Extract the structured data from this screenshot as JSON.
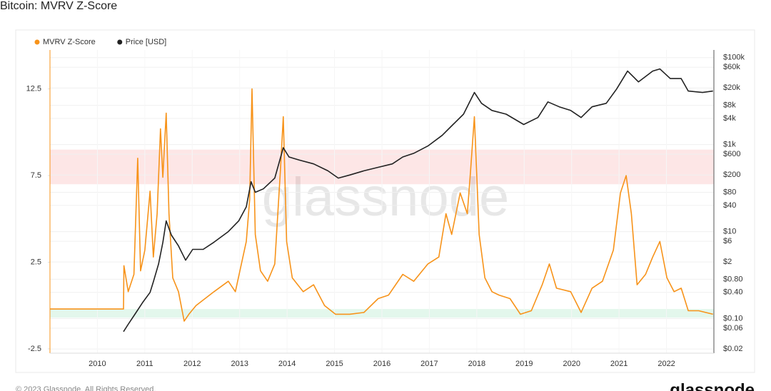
{
  "chart_data": {
    "type": "line",
    "title": "Bitcoin: MVRV Z-Score",
    "watermark": "glassnode",
    "copyright": "© 2023 Glassnode. All Rights Reserved.",
    "logo": "glassnode",
    "xlim": [
      2009,
      2023
    ],
    "xticks": [
      2010,
      2011,
      2012,
      2013,
      2014,
      2015,
      2016,
      2017,
      2018,
      2019,
      2020,
      2021,
      2022
    ],
    "ylim": [
      -2.75,
      14.75
    ],
    "yticks": [
      -2.5,
      2.5,
      7.5,
      12.5
    ],
    "y2lim": [
      0.016,
      150000
    ],
    "y2log": true,
    "y2ticks": [
      {
        "value": 100000,
        "label": "$100k"
      },
      {
        "value": 60000,
        "label": "$60k"
      },
      {
        "value": 20000,
        "label": "$20k"
      },
      {
        "value": 8000,
        "label": "$8k"
      },
      {
        "value": 4000,
        "label": "$4k"
      },
      {
        "value": 1000,
        "label": "$1k"
      },
      {
        "value": 600,
        "label": "$600"
      },
      {
        "value": 200,
        "label": "$200"
      },
      {
        "value": 80,
        "label": "$80"
      },
      {
        "value": 40,
        "label": "$40"
      },
      {
        "value": 10,
        "label": "$10"
      },
      {
        "value": 6,
        "label": "$6"
      },
      {
        "value": 2,
        "label": "$2"
      },
      {
        "value": 0.8,
        "label": "$0.80"
      },
      {
        "value": 0.4,
        "label": "$0.40"
      },
      {
        "value": 0.1,
        "label": "$0.10"
      },
      {
        "value": 0.06,
        "label": "$0.06"
      },
      {
        "value": 0.02,
        "label": "$0.02"
      }
    ],
    "grid": true,
    "legend": "top-left",
    "bands": [
      {
        "range": [
          7,
          9
        ],
        "color": "rgba(240,60,60,0.13)"
      },
      {
        "range": [
          -0.7,
          -0.2
        ],
        "color": "rgba(40,190,110,0.13)"
      }
    ],
    "series": [
      {
        "name": "MVRV Z-Score",
        "color": "#f7931a",
        "x": [
          2009,
          2010.55,
          2010.56,
          2010.65,
          2010.77,
          2010.85,
          2010.91,
          2011.0,
          2011.11,
          2011.18,
          2011.26,
          2011.33,
          2011.38,
          2011.45,
          2011.51,
          2011.59,
          2011.71,
          2011.83,
          2011.93,
          2012.08,
          2012.46,
          2012.76,
          2012.91,
          2013.14,
          2013.21,
          2013.26,
          2013.33,
          2013.44,
          2013.59,
          2013.74,
          2013.86,
          2013.92,
          2013.99,
          2014.11,
          2014.34,
          2014.56,
          2014.79,
          2015.02,
          2015.32,
          2015.62,
          2015.92,
          2016.14,
          2016.44,
          2016.67,
          2016.97,
          2017.2,
          2017.35,
          2017.47,
          2017.65,
          2017.8,
          2017.87,
          2017.95,
          2018.05,
          2018.17,
          2018.32,
          2018.47,
          2018.7,
          2018.92,
          2019.15,
          2019.38,
          2019.53,
          2019.68,
          2019.98,
          2020.2,
          2020.43,
          2020.65,
          2020.88,
          2021.03,
          2021.15,
          2021.26,
          2021.38,
          2021.56,
          2021.71,
          2021.86,
          2022.01,
          2022.16,
          2022.31,
          2022.46,
          2022.68,
          2022.98
        ],
        "values": [
          -0.2,
          -0.2,
          2.3,
          0.8,
          1.8,
          8.5,
          2.0,
          3.2,
          6.6,
          2.8,
          5.3,
          10.2,
          7.4,
          11.1,
          5.3,
          1.6,
          0.8,
          -0.9,
          -0.5,
          0,
          0.8,
          1.4,
          0.8,
          3.7,
          6.1,
          12.5,
          4.1,
          2.0,
          1.4,
          2.4,
          7.8,
          10.9,
          3.7,
          1.6,
          0.8,
          1.2,
          0,
          -0.5,
          -0.5,
          -0.4,
          0.4,
          0.6,
          1.8,
          1.4,
          2.4,
          2.8,
          5.3,
          4.1,
          6.5,
          5.3,
          7.8,
          10.9,
          4.1,
          1.6,
          0.8,
          0.6,
          0.4,
          -0.5,
          -0.3,
          1.2,
          2.4,
          1.0,
          0.8,
          -0.4,
          1.0,
          1.4,
          3.2,
          6.5,
          7.5,
          5.3,
          1.2,
          1.8,
          2.8,
          3.7,
          1.6,
          0.8,
          1.0,
          -0.3,
          -0.3,
          -0.5
        ]
      },
      {
        "name": "Price [USD]",
        "color": "#222222",
        "axis": "y2",
        "x": [
          2010.55,
          2010.65,
          2010.8,
          2010.95,
          2011.11,
          2011.18,
          2011.29,
          2011.38,
          2011.45,
          2011.56,
          2011.71,
          2011.86,
          2012.01,
          2012.23,
          2012.46,
          2012.76,
          2012.98,
          2013.14,
          2013.24,
          2013.33,
          2013.5,
          2013.74,
          2013.92,
          2014.04,
          2014.26,
          2014.56,
          2014.86,
          2015.08,
          2015.32,
          2015.62,
          2015.92,
          2016.22,
          2016.44,
          2016.67,
          2016.97,
          2017.27,
          2017.5,
          2017.72,
          2017.95,
          2018.1,
          2018.32,
          2018.62,
          2018.99,
          2019.29,
          2019.5,
          2019.74,
          2019.98,
          2020.2,
          2020.43,
          2020.73,
          2020.95,
          2021.18,
          2021.41,
          2021.71,
          2021.86,
          2022.08,
          2022.31,
          2022.46,
          2022.76,
          2022.98
        ],
        "values": [
          0.05,
          0.074,
          0.13,
          0.23,
          0.4,
          0.7,
          1.8,
          5.6,
          17.6,
          8.3,
          4.7,
          2.2,
          3.9,
          3.9,
          5.7,
          10,
          17.6,
          37,
          140,
          80,
          96,
          170,
          850,
          520,
          440,
          360,
          250,
          170,
          200,
          250,
          300,
          360,
          520,
          630,
          930,
          1630,
          2900,
          5000,
          15800,
          8900,
          6100,
          5000,
          2900,
          4200,
          9600,
          7400,
          6100,
          4200,
          7400,
          8900,
          19000,
          49000,
          27600,
          49000,
          55000,
          33000,
          33000,
          17000,
          15800,
          17000
        ]
      }
    ]
  }
}
